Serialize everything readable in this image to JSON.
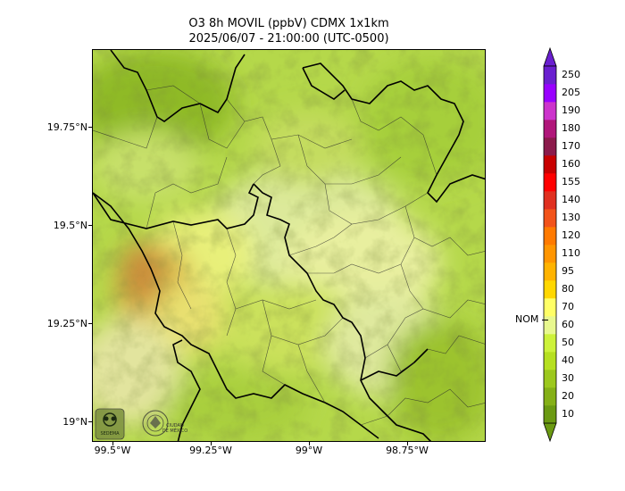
{
  "header": {
    "title": "O3 8h MOVIL (ppbV) CDMX 1x1km",
    "subtitle": "2025/06/07 - 21:00:00 (UTC-0500)"
  },
  "axes": {
    "y_labels": [
      "19.75°N",
      "19.5°N",
      "19.25°N",
      "19°N"
    ],
    "x_labels": [
      "99.5°W",
      "99.25°W",
      "99°W",
      "98.75°W"
    ]
  },
  "colorbar": {
    "levels": [
      "10",
      "20",
      "30",
      "40",
      "50",
      "60",
      "70",
      "80",
      "95",
      "110",
      "120",
      "130",
      "140",
      "155",
      "160",
      "170",
      "180",
      "190",
      "205",
      "250"
    ],
    "colors": [
      "#6b9a12",
      "#85b017",
      "#9cc81d",
      "#b6e020",
      "#cdf23a",
      "#e8f88f",
      "#ffff66",
      "#ffd700",
      "#ffb300",
      "#ff9500",
      "#ff7a00",
      "#f2531a",
      "#e03020",
      "#ff0000",
      "#c80000",
      "#8b1a4b",
      "#b0167a",
      "#cc33cc",
      "#9900ff",
      "#6a1fd0"
    ],
    "nom_label": "NOM"
  },
  "logos": {
    "left": "SEDEMA",
    "right": "CIUDAD DE MÉXICO"
  }
}
